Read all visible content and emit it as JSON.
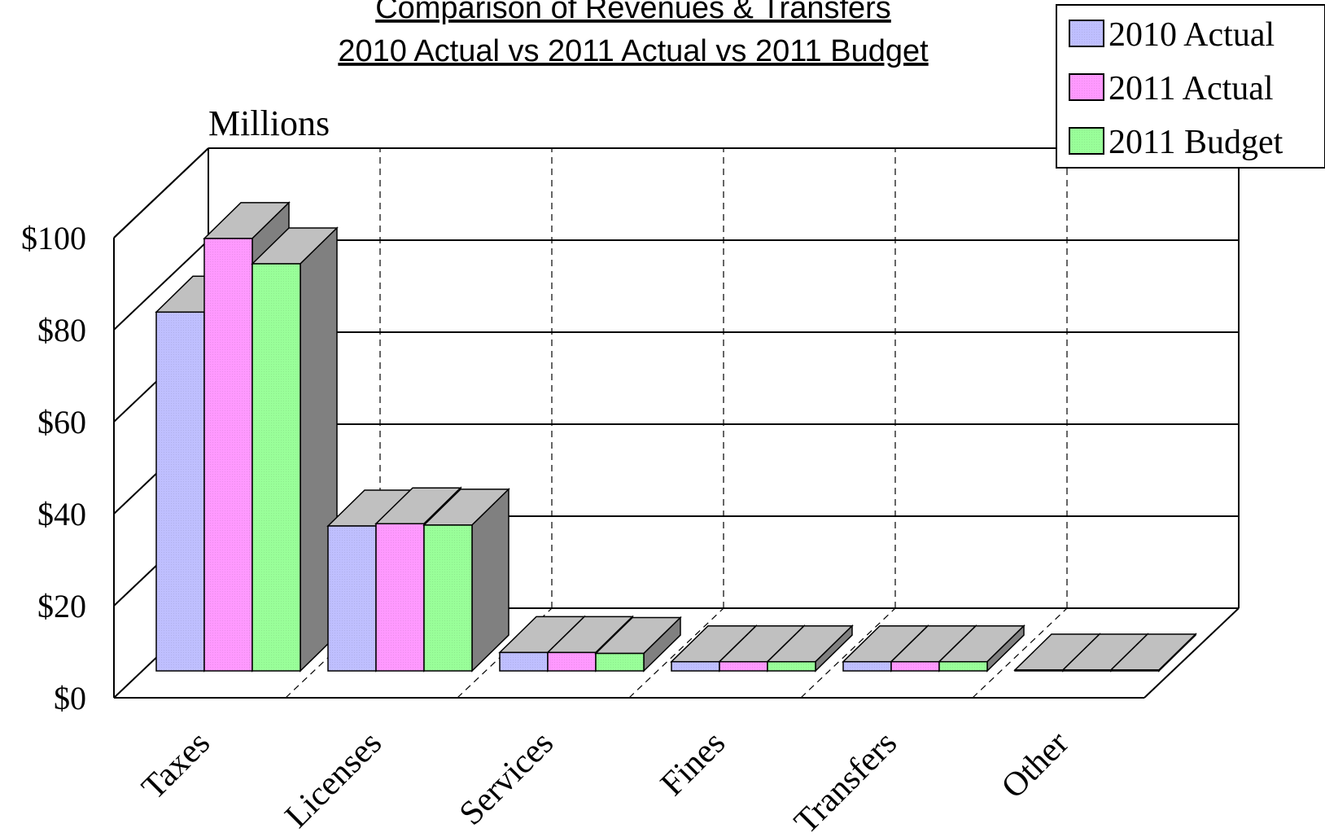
{
  "chart_data": {
    "type": "bar",
    "title": "Comparison of Revenues & Transfers",
    "subtitle": "2010 Actual vs 2011 Actual vs 2011 Budget",
    "ylabel": "Millions",
    "xlabel": "",
    "categories": [
      "Taxes",
      "Licenses",
      "Services",
      "Fines",
      "Transfers",
      "Other"
    ],
    "series": [
      {
        "name": "2010 Actual",
        "color": "#bfbfff",
        "values": [
          78,
          31.5,
          4,
          2,
          2,
          0.2
        ]
      },
      {
        "name": "2011 Actual",
        "color": "#ff99ff",
        "values": [
          94,
          32,
          4,
          2,
          2,
          0.2
        ]
      },
      {
        "name": "2011 Budget",
        "color": "#99ff99",
        "values": [
          88.5,
          31.7,
          3.8,
          2,
          2,
          0.2
        ]
      }
    ],
    "ylim": [
      0,
      100
    ],
    "yticks": [
      "$0",
      "$20",
      "$40",
      "$60",
      "$80",
      "$100"
    ],
    "ytick_values": [
      0,
      20,
      40,
      60,
      80,
      100
    ],
    "grid": true,
    "legend": "top-right",
    "style": "3d-clustered-bar"
  }
}
